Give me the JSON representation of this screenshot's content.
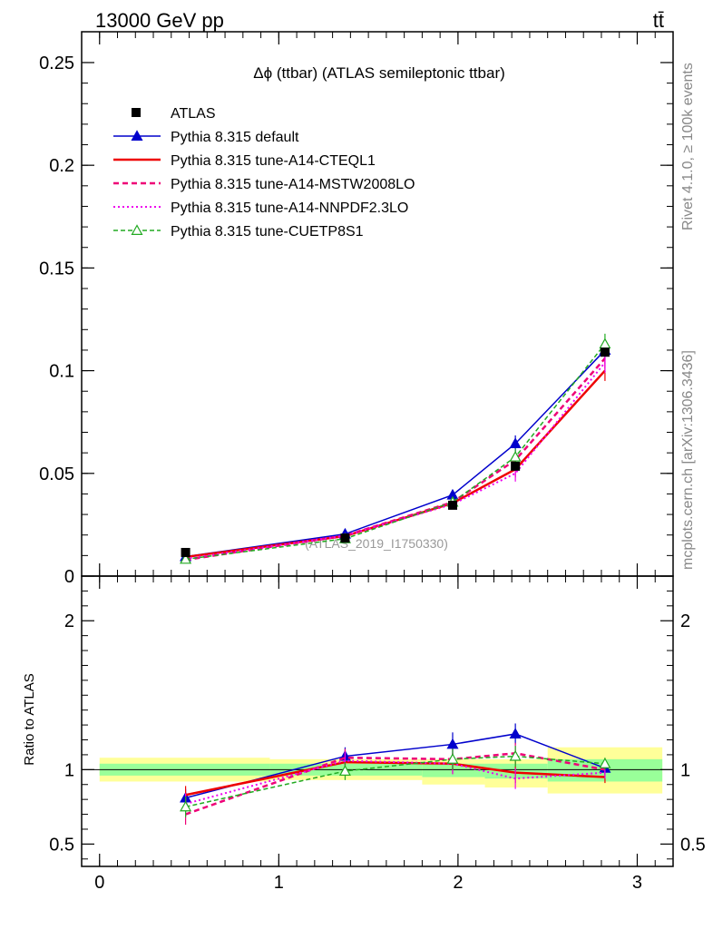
{
  "header": {
    "left": "13000 GeV pp",
    "right": "tt̄"
  },
  "side_labels": {
    "top": "Rivet 4.1.0, ≥ 100k events",
    "bottom": "mcplots.cern.ch [arXiv:1306.3436]"
  },
  "chart_data": {
    "type": "line",
    "title": "Δϕ (ttbar) (ATLAS semileptonic ttbar)",
    "watermark": "(ATLAS_2019_I1750330)",
    "xlim": [
      -0.1,
      3.2
    ],
    "ylim": [
      0,
      0.265
    ],
    "ratio_ylim": [
      0.35,
      2.3
    ],
    "ratio_ylabel": "Ratio to ATLAS",
    "x_ticks": [
      "0",
      "1",
      "2",
      "3"
    ],
    "y_ticks": [
      "0",
      "0.05",
      "0.1",
      "0.15",
      "0.2",
      "0.25"
    ],
    "ratio_ticks": [
      "0.5",
      "1",
      "2"
    ],
    "x": [
      0.48,
      1.37,
      1.97,
      2.32,
      2.82
    ],
    "bin_edges": [
      0,
      0.95,
      1.8,
      2.15,
      2.5,
      3.14
    ],
    "band_yellow": [
      [
        0.92,
        1.08
      ],
      [
        0.93,
        1.07
      ],
      [
        0.9,
        1.07
      ],
      [
        0.88,
        1.07
      ],
      [
        0.84,
        1.15
      ]
    ],
    "band_green": [
      [
        0.96,
        1.04
      ],
      [
        0.96,
        1.04
      ],
      [
        0.95,
        1.04
      ],
      [
        0.94,
        1.04
      ],
      [
        0.92,
        1.07
      ]
    ],
    "data": {
      "name": "ATLAS",
      "values": [
        0.0115,
        0.0185,
        0.0345,
        0.0535,
        0.109
      ]
    },
    "series": [
      {
        "name": "Pythia 8.315 default",
        "color": "#0000cc",
        "dash": "",
        "width": 1.5,
        "marker": "triangle-filled",
        "values": [
          0.0095,
          0.0205,
          0.0395,
          0.0645,
          0.11
        ],
        "err": [
          0.0008,
          0.0012,
          0.0025,
          0.004,
          0.005
        ],
        "ratio": [
          0.81,
          1.09,
          1.17,
          1.24,
          1.01
        ],
        "ratio_err": [
          0.06,
          0.06,
          0.08,
          0.07,
          0.04
        ]
      },
      {
        "name": "Pythia 8.315 tune-A14-CTEQL1",
        "color": "#ee0000",
        "dash": "",
        "width": 2.5,
        "marker": "none",
        "values": [
          0.0093,
          0.0195,
          0.0355,
          0.052,
          0.1
        ],
        "err": [
          0.0008,
          0.0012,
          0.0025,
          0.004,
          0.005
        ],
        "ratio": [
          0.83,
          1.05,
          1.04,
          0.98,
          0.95
        ],
        "ratio_err": [
          0.06,
          0.06,
          0.07,
          0.07,
          0.04
        ]
      },
      {
        "name": "Pythia 8.315 tune-A14-MSTW2008LO",
        "color": "#ee0077",
        "dash": "6,4",
        "width": 2.5,
        "marker": "none",
        "values": [
          0.0079,
          0.0197,
          0.036,
          0.0565,
          0.106
        ],
        "err": [
          0.0008,
          0.0012,
          0.0025,
          0.004,
          0.005
        ],
        "ratio": [
          0.7,
          1.08,
          1.07,
          1.11,
          1.0
        ],
        "ratio_err": [
          0.07,
          0.06,
          0.07,
          0.07,
          0.04
        ]
      },
      {
        "name": "Pythia 8.315 tune-A14-NNPDF2.3LO",
        "color": "#ee00ee",
        "dash": "2,3",
        "width": 2,
        "marker": "none",
        "values": [
          0.0085,
          0.0197,
          0.035,
          0.05,
          0.104
        ],
        "err": [
          0.0008,
          0.0012,
          0.0025,
          0.004,
          0.005
        ],
        "ratio": [
          0.77,
          1.06,
          1.04,
          0.94,
          0.98
        ],
        "ratio_err": [
          0.07,
          0.06,
          0.07,
          0.07,
          0.04
        ]
      },
      {
        "name": "Pythia 8.315 tune-CUETP8S1",
        "color": "#22aa22",
        "dash": "5,3",
        "width": 1.5,
        "marker": "triangle-open",
        "values": [
          0.0082,
          0.0182,
          0.036,
          0.058,
          0.113
        ],
        "err": [
          0.0008,
          0.0012,
          0.0025,
          0.004,
          0.005
        ],
        "ratio": [
          0.75,
          0.99,
          1.07,
          1.09,
          1.04
        ],
        "ratio_err": [
          0.07,
          0.06,
          0.07,
          0.07,
          0.04
        ]
      }
    ]
  }
}
